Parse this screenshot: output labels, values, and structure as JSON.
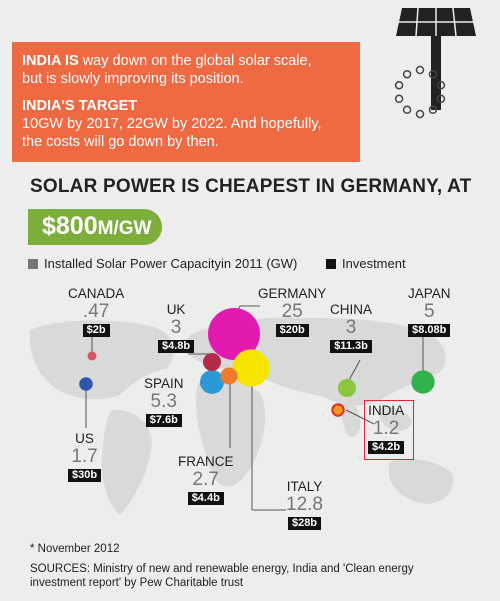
{
  "banner": {
    "line1_bold": "INDIA IS",
    "line1_rest": " way down on the global solar scale,",
    "line2": "but is slowly improving its position.",
    "target_bold": "INDIA'S TARGET",
    "target_line1": "10GW by 2017, 22GW by 2022. And hopefully,",
    "target_line2": "the costs will go down by then."
  },
  "headline": "SOLAR POWER IS CHEAPEST IN GERMANY, AT",
  "price": {
    "amount": "$800",
    "unit": "M/GW"
  },
  "legend": {
    "capacity_label": "Installed Solar Power Capacityin 2011 (GW)",
    "investment_label": "Investment",
    "capacity_color": "#777777",
    "investment_color": "#111111"
  },
  "chart_data": {
    "type": "bubble-map",
    "title": "SOLAR POWER IS CHEAPEST IN GERMANY, AT $800M/GW",
    "units": {
      "capacity": "GW",
      "investment": "$ billion"
    },
    "series": [
      {
        "name": "CANADA",
        "capacity": ".47",
        "investment": "$2b",
        "color": "#d6565e"
      },
      {
        "name": "UK",
        "capacity": "3",
        "investment": "$4.8b",
        "color": "#b42a4a"
      },
      {
        "name": "GERMANY",
        "capacity": "25",
        "investment": "$20b",
        "color": "#e21bb0"
      },
      {
        "name": "CHINA",
        "capacity": "3",
        "investment": "$11.3b",
        "color": "#8cc63f"
      },
      {
        "name": "JAPAN",
        "capacity": "5",
        "investment": "$8.08b",
        "color": "#2fb34a"
      },
      {
        "name": "SPAIN",
        "capacity": "5.3",
        "investment": "$7.6b",
        "color": "#2a9ad6"
      },
      {
        "name": "FRANCE",
        "capacity": "2.7",
        "investment": "$4.4b",
        "color": "#f07a2e"
      },
      {
        "name": "ITALY",
        "capacity": "12.8",
        "investment": "$28b",
        "color": "#f5e400"
      },
      {
        "name": "US",
        "capacity": "1.7",
        "investment": "$30b",
        "color": "#3055a8"
      },
      {
        "name": "INDIA",
        "capacity": "1.2",
        "investment": "$4.2b",
        "color": "#f39a1e"
      }
    ]
  },
  "footnote": "* November 2012",
  "sources_line1": "SOURCES: Ministry of new and renewable energy, India and 'Clean energy",
  "sources_line2": "investment report' by Pew Charitable trust"
}
